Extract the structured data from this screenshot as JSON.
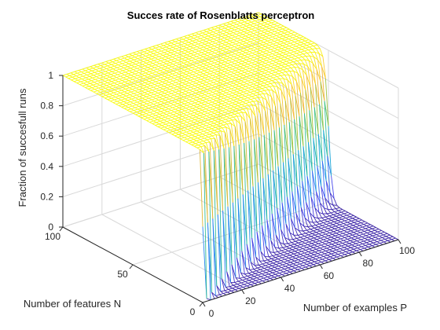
{
  "chart_data": {
    "type": "surface",
    "title": "Succes rate of Rosenblatts perceptron",
    "xlabel": "Number of examples P",
    "ylabel": "Number of features N",
    "zlabel": "Fraction of succesfull runs",
    "xlim": [
      0,
      100
    ],
    "ylim": [
      0,
      100
    ],
    "zlim": [
      0,
      1
    ],
    "xticks": [
      0,
      20,
      40,
      60,
      80,
      100
    ],
    "yticks": [
      0,
      50,
      100
    ],
    "zticks": [
      0,
      0.2,
      0.4,
      0.6,
      0.8,
      1
    ],
    "grid": true,
    "colormap": "parula",
    "colormap_stops": [
      "#3e26a8",
      "#4746eb",
      "#3079f6",
      "#1aa5da",
      "#22b8a9",
      "#4bc67d",
      "#a8c43b",
      "#f1b23b",
      "#fbd52e",
      "#f9fb0e"
    ],
    "surface_description": "z is approximately 0 when P is greater than about 2N and approximately 1 when P is less than about 2N, with a steep sigmoidal transition along the line P = 2N",
    "transition_ratio": 2
  }
}
